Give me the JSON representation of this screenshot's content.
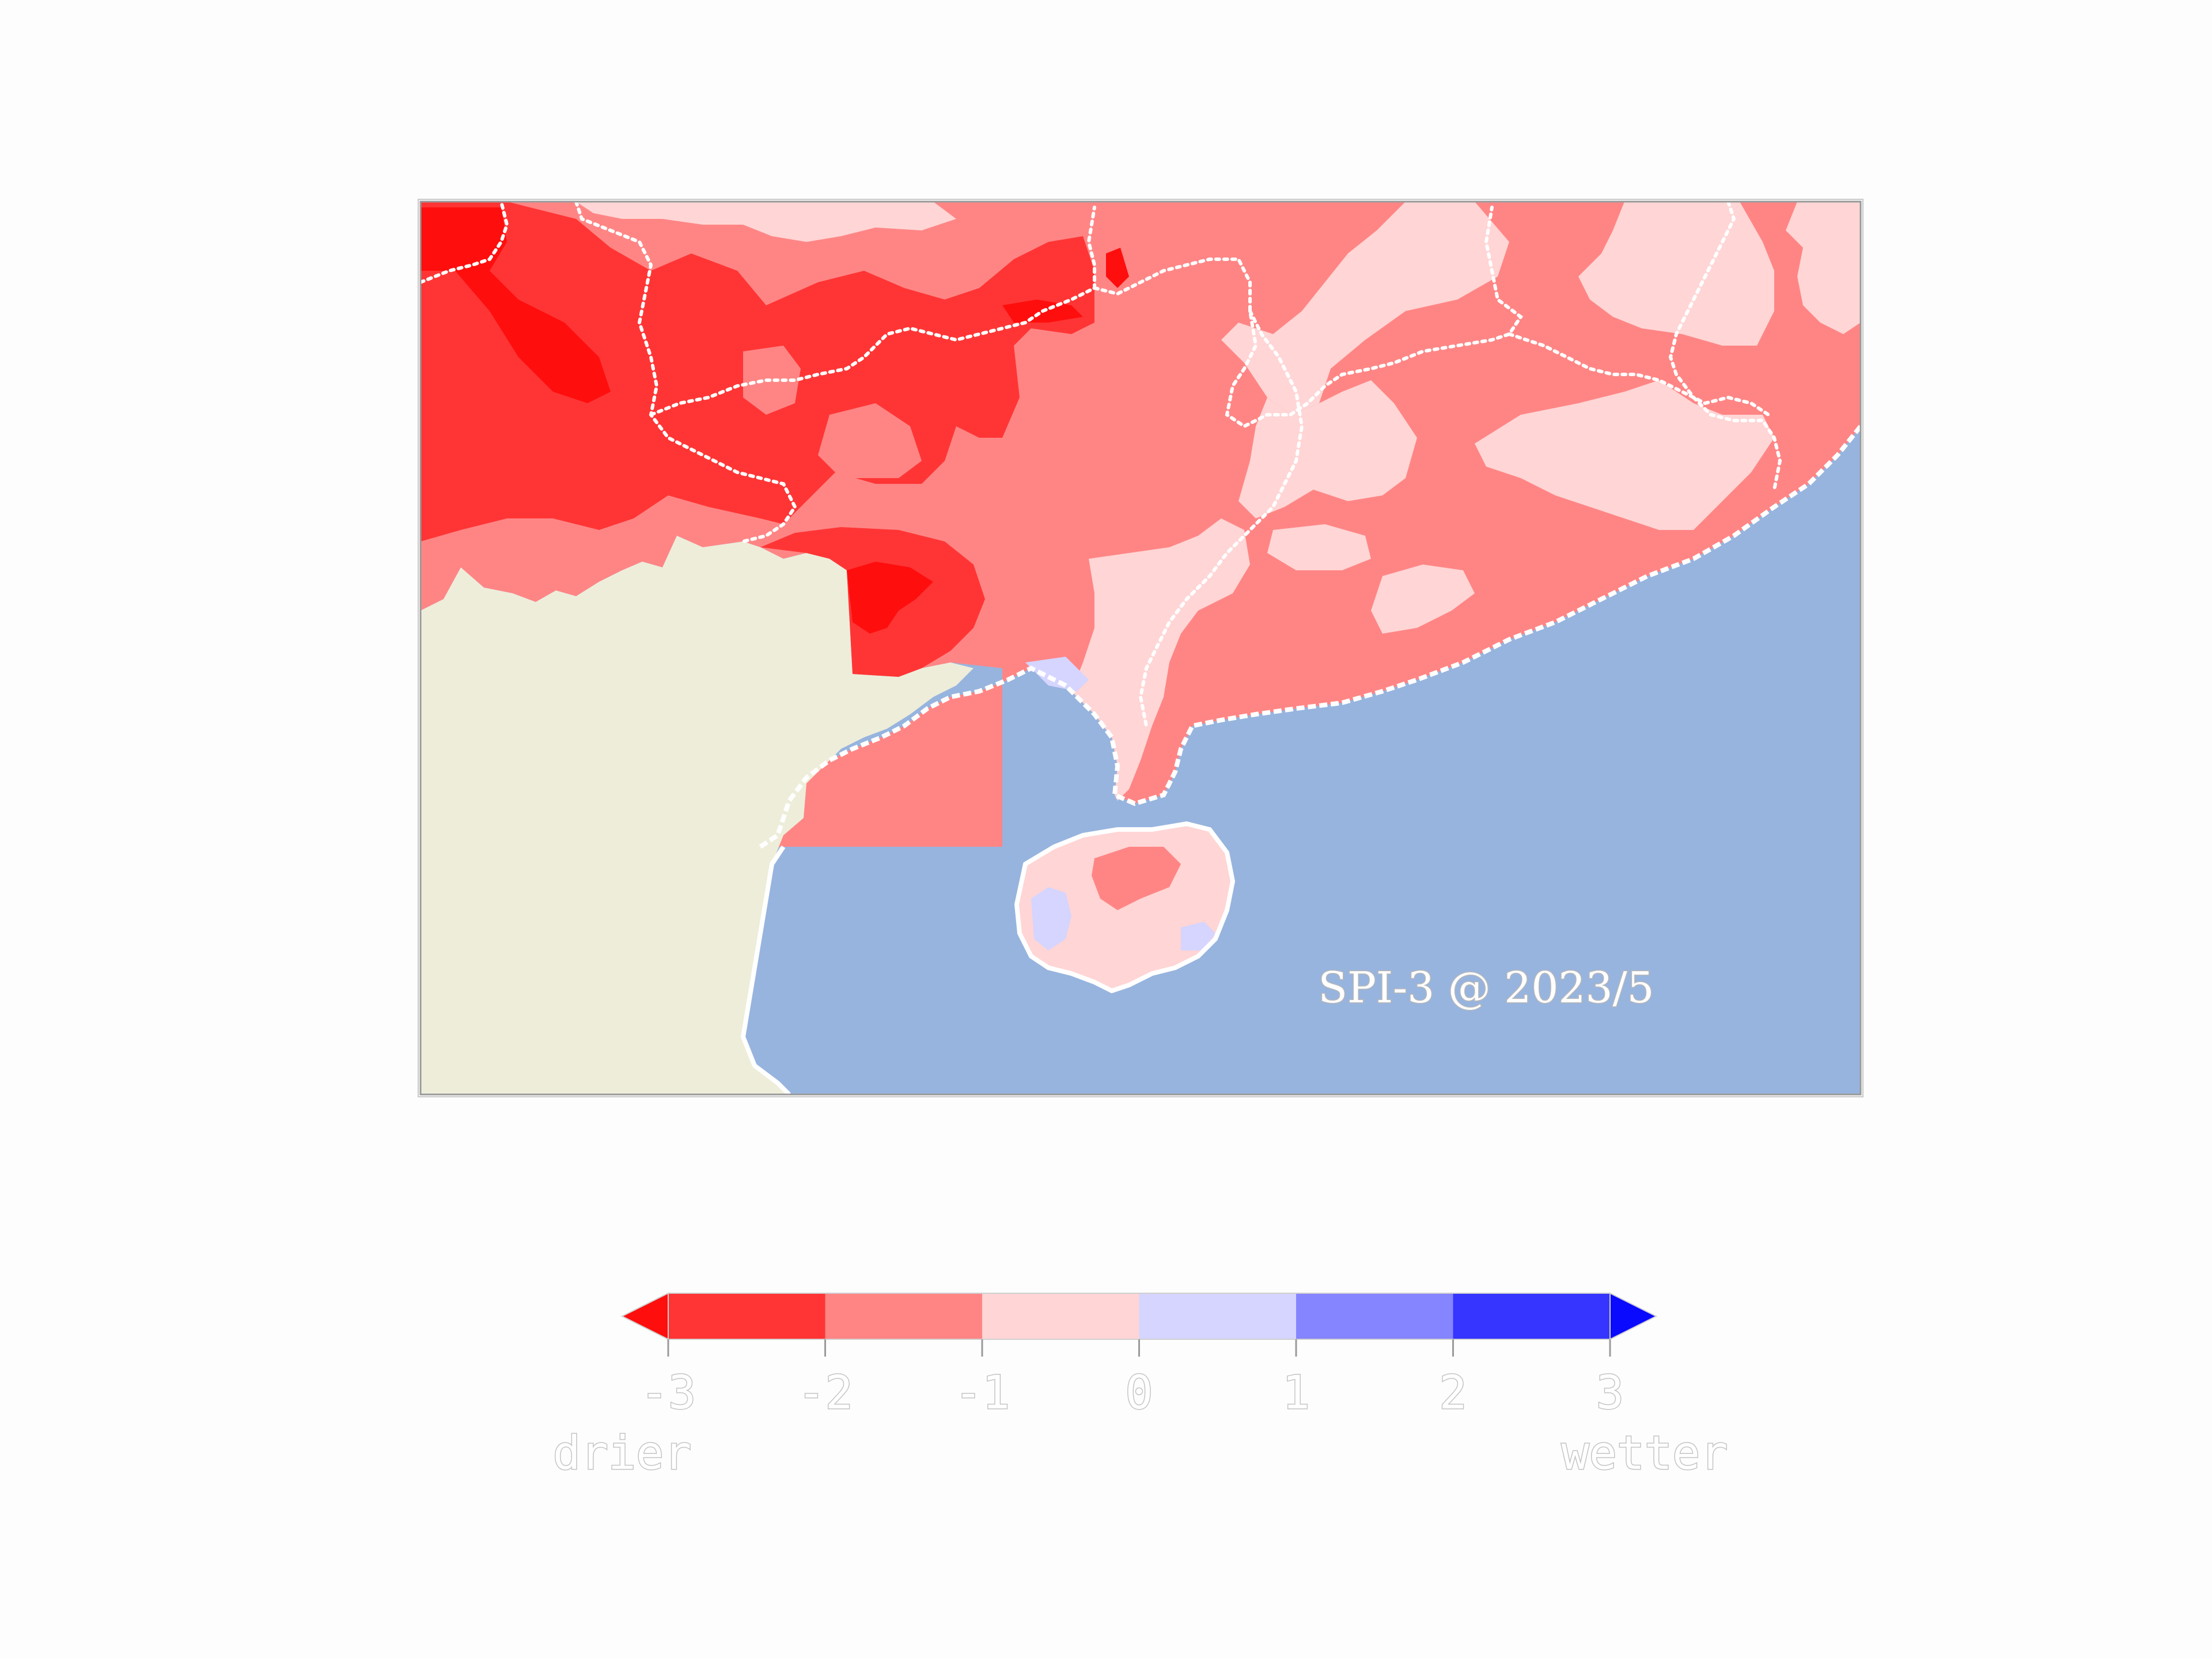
{
  "map": {
    "title": "SPI-3 @ 2023/5",
    "colors": {
      "ocean": "#97b4de",
      "land_nodata": "#eeedda",
      "border": "#ffffff",
      "frame": "#9a9a9a"
    },
    "classes": [
      {
        "range": "<-3",
        "color": "#ff0e0e"
      },
      {
        "range": "-3..-2",
        "color": "#ff3535"
      },
      {
        "range": "-2..-1",
        "color": "#ff8585"
      },
      {
        "range": "-1..0",
        "color": "#ffd5d5"
      },
      {
        "range": "0..1",
        "color": "#d5d5ff"
      },
      {
        "range": "1..2",
        "color": "#8585ff"
      },
      {
        "range": "2..3",
        "color": "#3535ff"
      },
      {
        "range": ">3",
        "color": "#0a0aff"
      }
    ]
  },
  "colorbar": {
    "ticks": [
      "-3",
      "-2",
      "-1",
      "0",
      "1",
      "2",
      "3"
    ],
    "left_label": "drier",
    "right_label": "wetter",
    "colors": [
      "#ff0e0e",
      "#ff3535",
      "#ff8585",
      "#ffd5d5",
      "#d5d5ff",
      "#8585ff",
      "#3535ff",
      "#0a0aff"
    ]
  }
}
